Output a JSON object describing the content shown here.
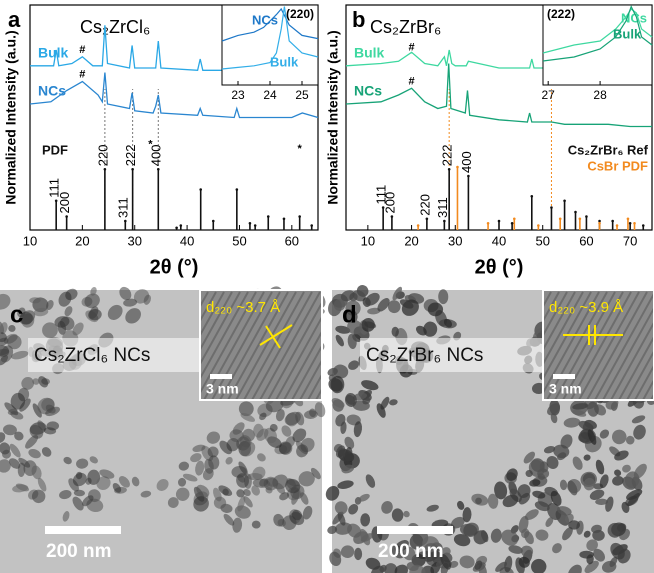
{
  "chart_data": [
    {
      "type": "xrd",
      "panel": "a",
      "title": "Cs₂ZrCl₆",
      "xlabel": "2θ (°)",
      "ylabel": "Normalized Intensity (a.u.)",
      "xlim": [
        10,
        65
      ],
      "xticks": [
        10,
        20,
        30,
        40,
        50,
        60
      ],
      "ylim": [
        0,
        100
      ],
      "legend": "left",
      "series": [
        {
          "name": "Bulk",
          "color": "#2aa8e6",
          "x": [
            10,
            14.5,
            15,
            15.5,
            18,
            20,
            22,
            23.8,
            24.3,
            24.8,
            29,
            29.5,
            30,
            34,
            34.5,
            35,
            42,
            42.5,
            43,
            49,
            49.5,
            50,
            55,
            60,
            65
          ],
          "values": [
            73,
            73,
            80,
            73,
            74,
            77,
            73,
            73,
            91,
            74,
            72,
            82,
            72,
            72,
            84,
            72,
            71,
            76,
            71,
            71,
            78,
            71,
            71,
            71,
            71
          ]
        },
        {
          "name": "NCs",
          "color": "#2a86d0",
          "x": [
            10,
            14,
            17,
            20,
            23,
            23.8,
            24.3,
            24.8,
            29,
            29.5,
            30,
            33.5,
            34,
            34.5,
            35,
            42,
            42.5,
            43,
            49,
            49.5,
            50,
            55,
            60,
            62,
            65
          ],
          "values": [
            56,
            57,
            62,
            66,
            60,
            57,
            70,
            56,
            54,
            61,
            53,
            52,
            55,
            60,
            52,
            51,
            54,
            51,
            50,
            54,
            50,
            50,
            50,
            52,
            50
          ]
        }
      ],
      "annotations": [
        {
          "text": "#",
          "x": 20,
          "y": 80
        },
        {
          "text": "#",
          "x": 20,
          "y": 69
        },
        {
          "text": "*",
          "x": 33,
          "y": 38
        },
        {
          "text": "*",
          "x": 61.5,
          "y": 36
        }
      ],
      "reference": [
        {
          "name": "PDF",
          "color": "#111111",
          "x": [
            15,
            17,
            24.3,
            28.2,
            29.6,
            34.5,
            38,
            38.8,
            42.6,
            45,
            49.5,
            52,
            53,
            55.5,
            58.5,
            61.5,
            63.8
          ],
          "values": [
            13,
            6,
            27,
            4,
            27,
            27,
            1,
            2,
            18,
            4,
            18,
            3,
            2,
            6,
            5,
            6,
            2
          ],
          "labels": [
            "111",
            "200",
            "220",
            "311",
            "222",
            "400",
            null,
            null,
            null,
            null,
            null,
            null,
            null,
            null,
            null,
            null,
            null
          ]
        }
      ],
      "guides": {
        "x": [
          24.3,
          29.6,
          34.5
        ],
        "color": "#777777"
      },
      "inset": {
        "title": "(220)",
        "xlim": [
          22.5,
          25.5
        ],
        "xticks": [
          23,
          24,
          25
        ],
        "ylim": [
          0,
          100
        ],
        "series": [
          {
            "name": "NCs",
            "color": "#1e78c8",
            "x": [
              22.5,
              23,
              23.5,
              23.8,
              24,
              24.2,
              24.35,
              24.6,
              25,
              25.5
            ],
            "values": [
              55,
              62,
              66,
              72,
              80,
              88,
              95,
              75,
              62,
              58
            ]
          },
          {
            "name": "Bulk",
            "color": "#33aee8",
            "x": [
              22.5,
              23,
              23.5,
              24,
              24.2,
              24.35,
              24.45,
              24.6,
              25,
              25.5
            ],
            "values": [
              20,
              22,
              24,
              28,
              40,
              70,
              98,
              55,
              40,
              35
            ]
          }
        ]
      }
    },
    {
      "type": "xrd",
      "panel": "b",
      "title": "Cs₂ZrBr₆",
      "xlabel": "2θ (°)",
      "ylabel": "Normalized Intensity (a.u.)",
      "xlim": [
        5,
        75
      ],
      "xticks": [
        10,
        20,
        30,
        40,
        50,
        60,
        70
      ],
      "ylim": [
        0,
        100
      ],
      "legend": "right",
      "series": [
        {
          "name": "Bulk",
          "color": "#3ed8a0",
          "x": [
            5,
            13,
            17,
            20,
            23,
            26,
            27.5,
            28,
            28.6,
            29.2,
            30,
            32.5,
            33,
            40,
            47,
            47.5,
            48,
            52,
            52.5,
            53,
            56,
            60,
            65,
            70,
            75
          ],
          "values": [
            73,
            74,
            75,
            79,
            74,
            73,
            77,
            73,
            80,
            74,
            73,
            73,
            75,
            72,
            72,
            76,
            72,
            72,
            75,
            72,
            72,
            72,
            72,
            72,
            72
          ]
        },
        {
          "name": "NCs",
          "color": "#17a377",
          "x": [
            5,
            13,
            17,
            20,
            23,
            26,
            28,
            28.5,
            29,
            32.3,
            32.8,
            33.3,
            40,
            46.5,
            47,
            47.5,
            52,
            55,
            60,
            65,
            70,
            75
          ],
          "values": [
            56,
            57,
            60,
            63,
            57,
            54,
            55,
            74,
            54,
            52,
            62,
            51,
            49,
            48,
            52,
            48,
            48,
            47,
            47,
            47,
            46,
            46
          ]
        }
      ],
      "annotations": [
        {
          "text": "#",
          "x": 20,
          "y": 81
        },
        {
          "text": "#",
          "x": 20,
          "y": 66
        }
      ],
      "reference": [
        {
          "name": "Cs₂ZrBr₆ Ref",
          "color": "#111111",
          "x": [
            13.5,
            15.5,
            23.5,
            27.5,
            28.6,
            33,
            40,
            43,
            47.5,
            52,
            55,
            57.5,
            60,
            63,
            66,
            70,
            73
          ],
          "values": [
            10,
            6,
            5,
            4,
            27,
            24,
            4,
            3,
            15,
            10,
            13,
            8,
            6,
            4,
            4,
            3,
            2
          ],
          "labels": [
            "111",
            "200",
            "220",
            "311",
            "222",
            "400",
            null,
            null,
            null,
            null,
            null,
            null,
            null,
            null,
            null,
            null,
            null
          ]
        },
        {
          "name": "CsBr PDF",
          "color": "#f28a1e",
          "x": [
            21.5,
            30.5,
            37.5,
            43.5,
            49,
            54,
            58.5,
            63,
            67,
            69.5,
            71
          ],
          "values": [
            2,
            28,
            3,
            5,
            2,
            5,
            5,
            3,
            2,
            5,
            3
          ],
          "labels": [
            null,
            null,
            null,
            null,
            null,
            null,
            null,
            null,
            null,
            null,
            null
          ]
        }
      ],
      "guides": {
        "x": [
          28.6,
          52
        ],
        "color": "#f28a1e"
      },
      "inset": {
        "title": "(222)",
        "xlim": [
          26.9,
          29
        ],
        "xticks": [
          27,
          28
        ],
        "ylim": [
          0,
          100
        ],
        "series": [
          {
            "name": "NCs",
            "color": "#3ed8a0",
            "x": [
              26.9,
              27.5,
              28,
              28.3,
              28.5,
              28.6,
              28.7,
              28.8,
              29
            ],
            "values": [
              40,
              50,
              55,
              70,
              85,
              95,
              90,
              70,
              60
            ]
          },
          {
            "name": "Bulk",
            "color": "#17a377",
            "x": [
              26.9,
              27.5,
              28,
              28.3,
              28.5,
              28.6,
              28.7,
              28.8,
              29
            ],
            "values": [
              30,
              35,
              45,
              60,
              80,
              98,
              85,
              60,
              50
            ]
          }
        ]
      }
    }
  ],
  "images": [
    {
      "panel": "c",
      "label": "Cs₂ZrCl₆ NCs",
      "inset_label": "d₂₂₀ ~3.7 Å",
      "inset_scale": "3 nm",
      "scale": "200 nm"
    },
    {
      "panel": "d",
      "label": "Cs₂ZrBr₆ NCs",
      "inset_label": "d₂₂₀ ~3.9 Å",
      "inset_scale": "3 nm",
      "scale": "200 nm"
    }
  ]
}
